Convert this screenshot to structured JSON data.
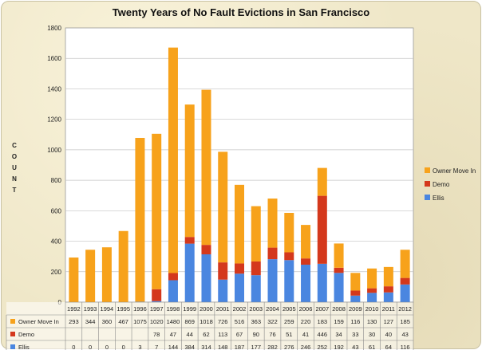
{
  "chart_data": {
    "type": "bar",
    "stacked": true,
    "title": "Twenty Years of No Fault Evictions in San Francisco",
    "ylabel": "COUNT",
    "xlabel": "",
    "ylim": [
      0,
      1800
    ],
    "yticks": [
      0,
      200,
      400,
      600,
      800,
      1000,
      1200,
      1400,
      1600,
      1800
    ],
    "grid": true,
    "legend_position": "right",
    "categories": [
      "1992",
      "1993",
      "1994",
      "1995",
      "1996",
      "1997",
      "1998",
      "1999",
      "2000",
      "2001",
      "2002",
      "2003",
      "2004",
      "2005",
      "2006",
      "2007",
      "2008",
      "2009",
      "2010",
      "2011",
      "2012"
    ],
    "series": [
      {
        "name": "Ellis",
        "color": "#4a86e0",
        "values": [
          0,
          0,
          0,
          0,
          3,
          7,
          144,
          384,
          314,
          148,
          187,
          177,
          282,
          276,
          246,
          252,
          192,
          43,
          61,
          64,
          116
        ],
        "labels": [
          "0",
          "0",
          "0",
          "0",
          "3",
          "7",
          "144",
          "384",
          "314",
          "148",
          "187",
          "177",
          "282",
          "276",
          "246",
          "252",
          "192",
          "43",
          "61",
          "64",
          "116"
        ]
      },
      {
        "name": "Demo",
        "color": "#d4381c",
        "values": [
          0,
          0,
          0,
          0,
          0,
          78,
          47,
          44,
          62,
          113,
          67,
          90,
          76,
          51,
          41,
          446,
          34,
          33,
          30,
          40,
          43
        ],
        "labels": [
          "",
          "",
          "",
          "",
          "",
          "78",
          "47",
          "44",
          "62",
          "113",
          "67",
          "90",
          "76",
          "51",
          "41",
          "446",
          "34",
          "33",
          "30",
          "40",
          "43"
        ]
      },
      {
        "name": "Owner Move In",
        "color": "#f7a21b",
        "values": [
          293,
          344,
          360,
          467,
          1075,
          1020,
          1480,
          869,
          1018,
          726,
          516,
          363,
          322,
          259,
          220,
          183,
          159,
          116,
          130,
          127,
          185
        ],
        "labels": [
          "293",
          "344",
          "360",
          "467",
          "1075",
          "1020",
          "1480",
          "869",
          "1018",
          "726",
          "516",
          "363",
          "322",
          "259",
          "220",
          "183",
          "159",
          "116",
          "130",
          "127",
          "185"
        ]
      }
    ],
    "table_order": [
      "Owner Move In",
      "Demo",
      "Ellis"
    ],
    "legend_order": [
      "Owner Move In",
      "Demo",
      "Ellis"
    ]
  }
}
